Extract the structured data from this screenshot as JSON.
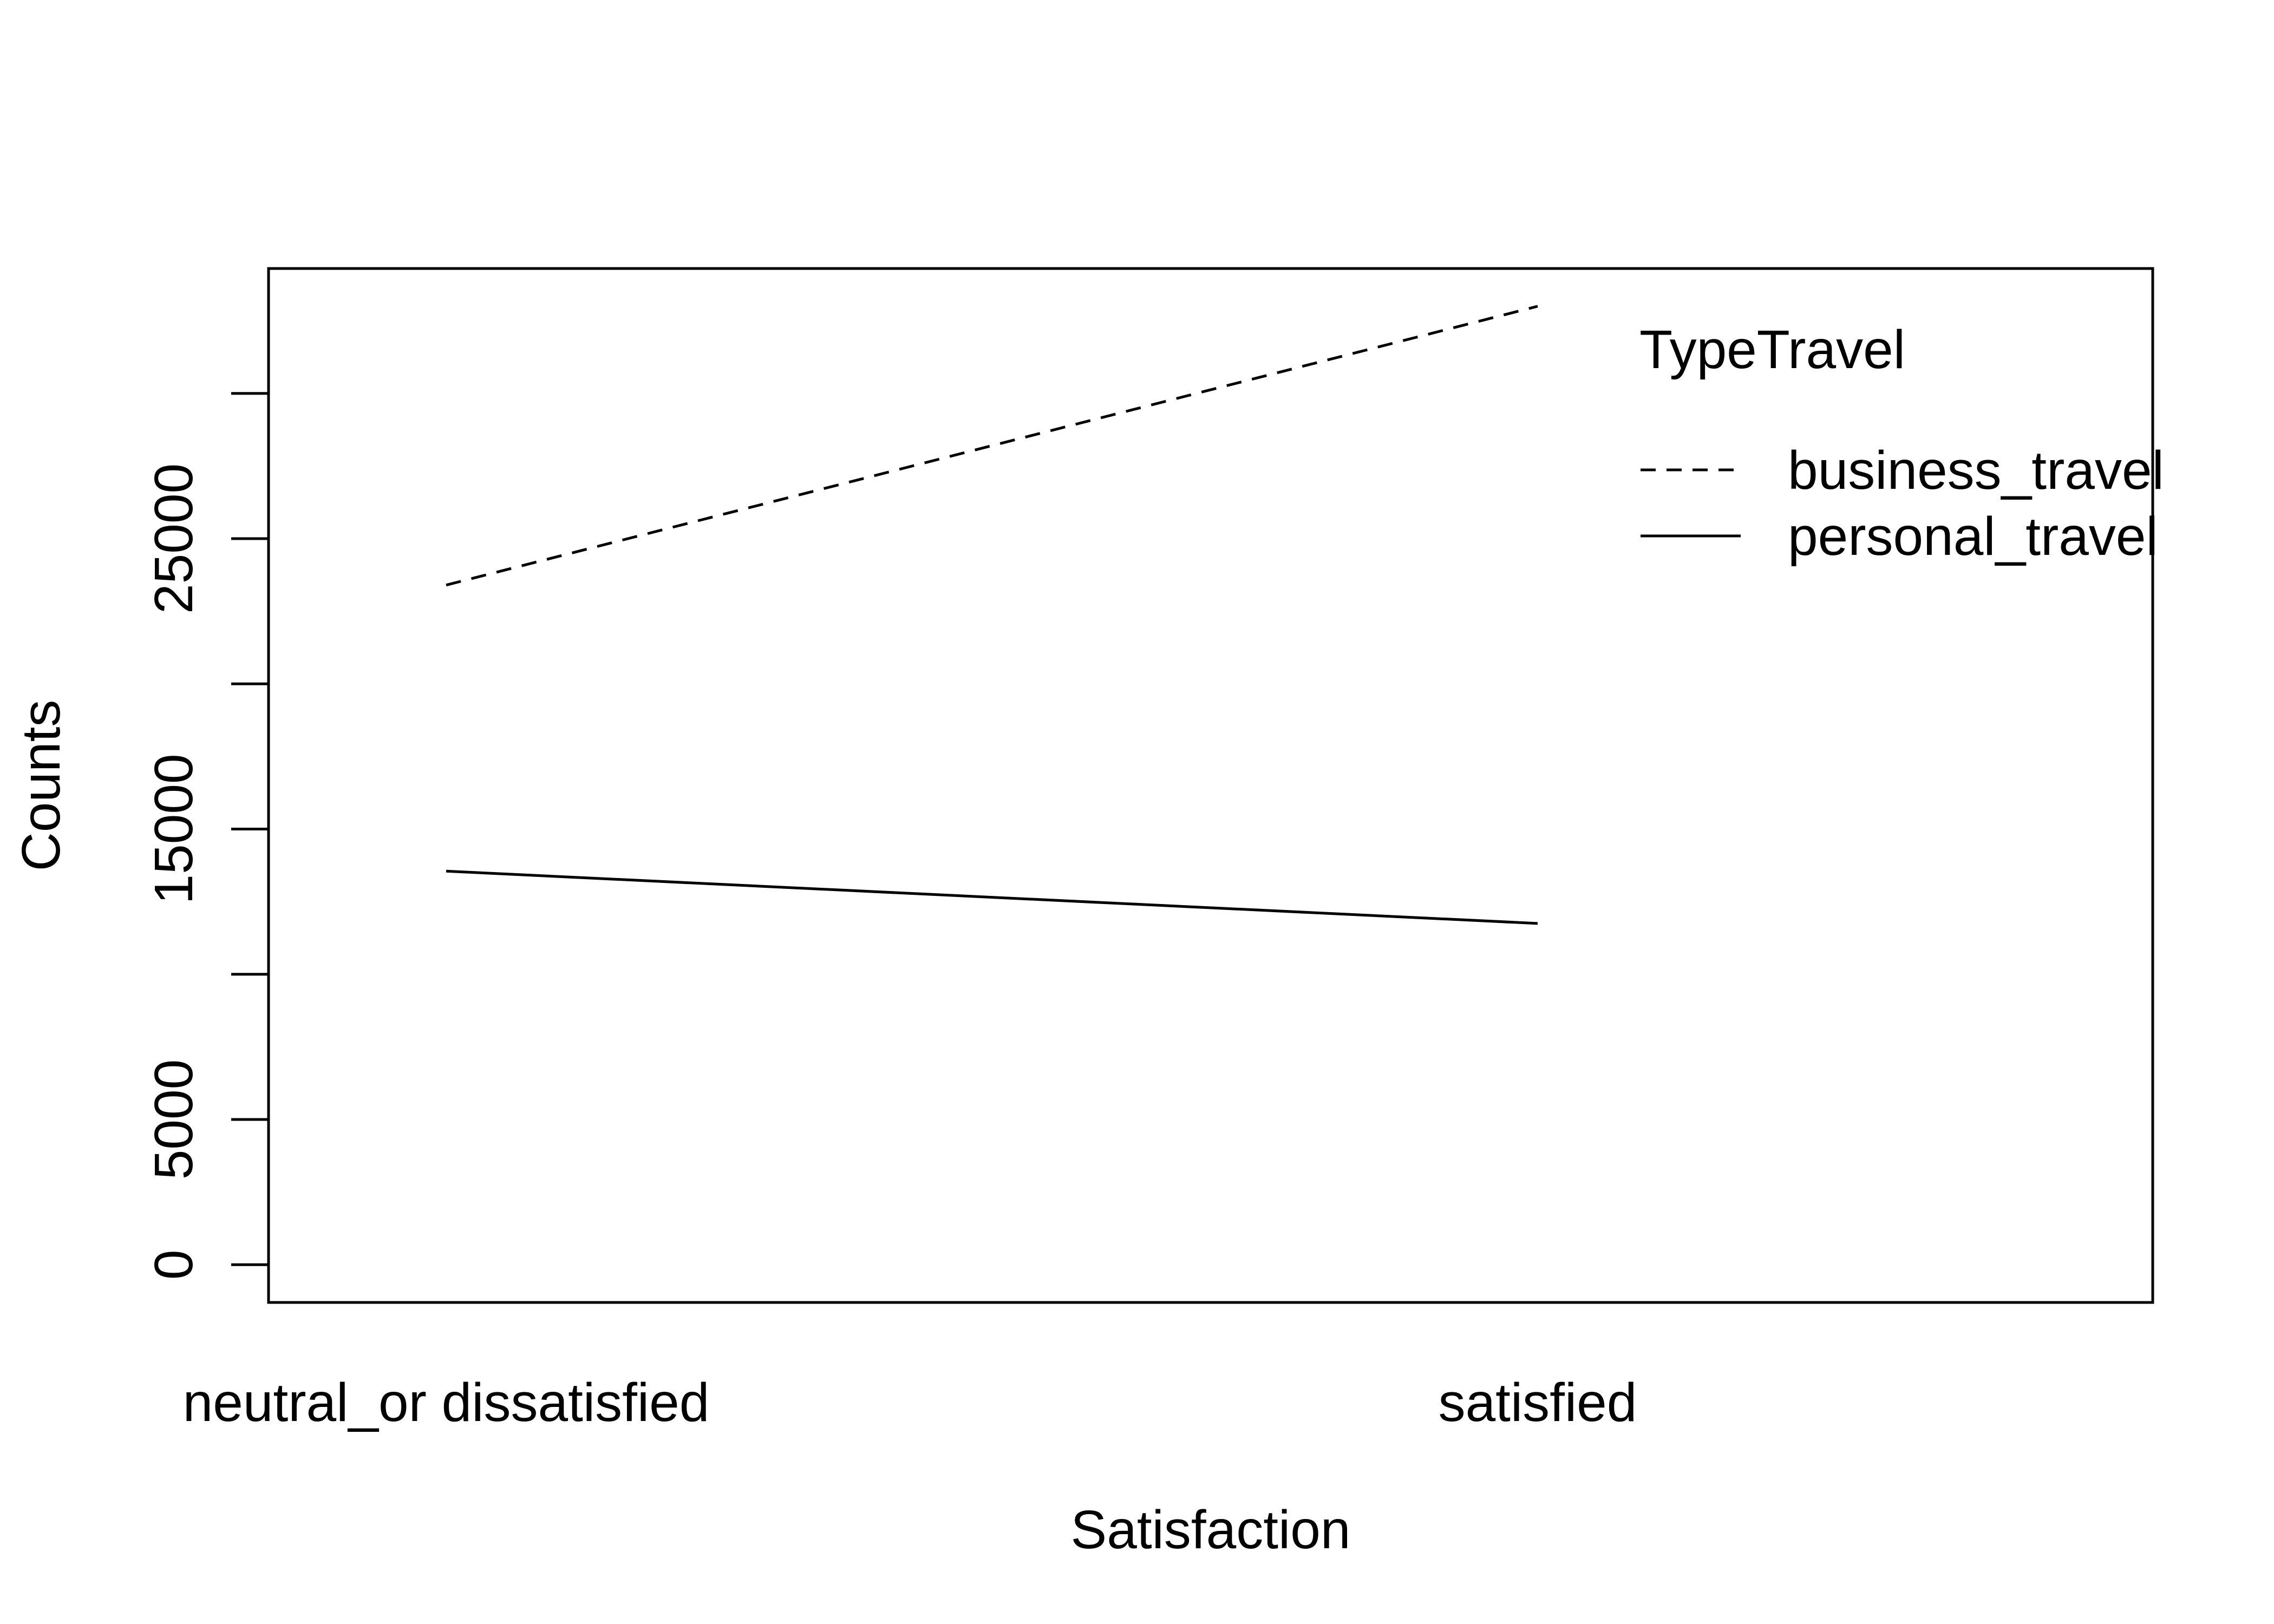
{
  "chart_data": {
    "type": "line",
    "title": "",
    "xlabel": "Satisfaction",
    "ylabel": "Counts",
    "categories": [
      "neutral_or dissatisfied",
      "satisfied"
    ],
    "ylim": [
      -1300,
      34300
    ],
    "yticks": [
      0,
      5000,
      10000,
      15000,
      20000,
      25000,
      30000
    ],
    "ytick_labels": [
      "0",
      "5000",
      "",
      "15000",
      "",
      "25000",
      ""
    ],
    "grid": false,
    "legend": {
      "title": "TypeTravel",
      "position": "top-right"
    },
    "series": [
      {
        "name": "business_travel",
        "line_style": "dashed",
        "values": [
          23400,
          33000
        ]
      },
      {
        "name": "personal_travel",
        "line_style": "solid",
        "values": [
          13550,
          11750
        ]
      }
    ]
  },
  "colors": {
    "line": "#000000",
    "background": "#ffffff"
  }
}
